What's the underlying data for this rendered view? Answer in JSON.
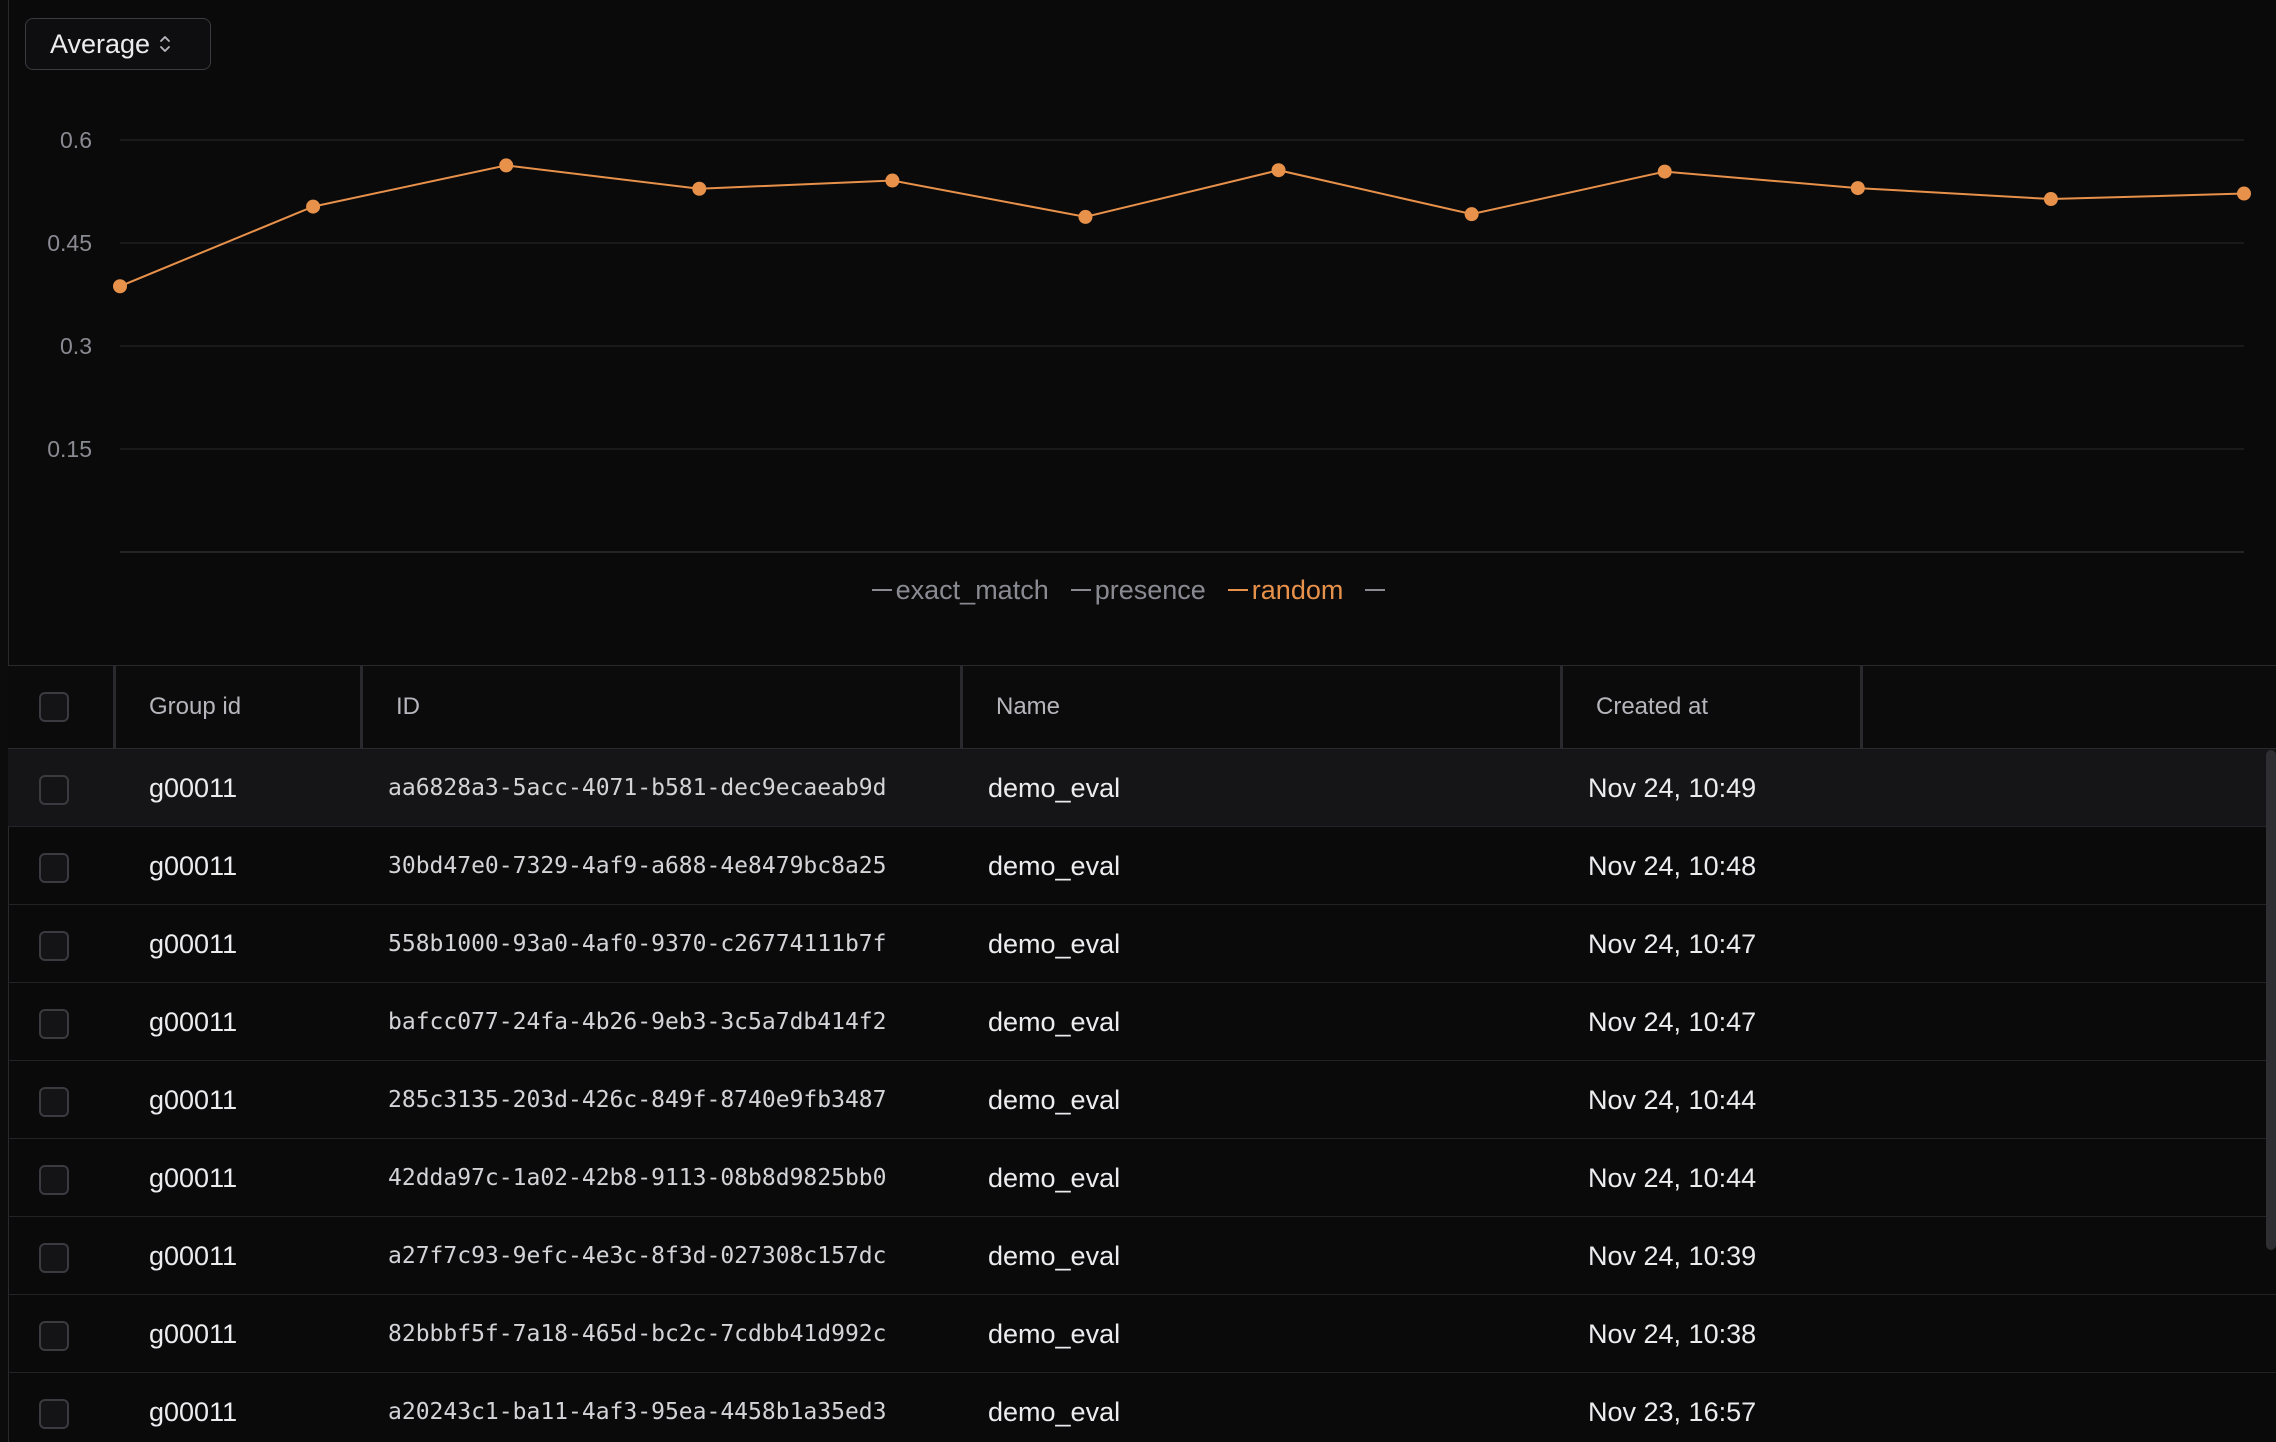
{
  "aggregate_select": {
    "value": "Average"
  },
  "chart_data": {
    "type": "line",
    "title": "",
    "xlabel": "",
    "ylabel": "",
    "ylim": [
      0,
      0.6
    ],
    "y_ticks": [
      "0.6",
      "0.45",
      "0.3",
      "0.15"
    ],
    "x": [
      1,
      2,
      3,
      4,
      5,
      6,
      7,
      8,
      9,
      10,
      11,
      12
    ],
    "grid": true,
    "legend_placement": "bottom-center",
    "series": [
      {
        "name": "random",
        "color": "#e8914a",
        "values": [
          0.387,
          0.503,
          0.563,
          0.529,
          0.541,
          0.488,
          0.556,
          0.492,
          0.554,
          0.53,
          0.514,
          0.522
        ]
      }
    ],
    "legend": [
      {
        "label": "exact_match",
        "active": false
      },
      {
        "label": "presence",
        "active": false
      },
      {
        "label": "random",
        "active": true
      },
      {
        "label": "",
        "active": false
      }
    ]
  },
  "table": {
    "columns": {
      "group_id": "Group id",
      "id": "ID",
      "name": "Name",
      "created_at": "Created at"
    },
    "rows": [
      {
        "group_id": "g00011",
        "id": "aa6828a3-5acc-4071-b581-dec9ecaeab9d",
        "name": "demo_eval",
        "created_at": "Nov 24, 10:49"
      },
      {
        "group_id": "g00011",
        "id": "30bd47e0-7329-4af9-a688-4e8479bc8a25",
        "name": "demo_eval",
        "created_at": "Nov 24, 10:48"
      },
      {
        "group_id": "g00011",
        "id": "558b1000-93a0-4af0-9370-c26774111b7f",
        "name": "demo_eval",
        "created_at": "Nov 24, 10:47"
      },
      {
        "group_id": "g00011",
        "id": "bafcc077-24fa-4b26-9eb3-3c5a7db414f2",
        "name": "demo_eval",
        "created_at": "Nov 24, 10:47"
      },
      {
        "group_id": "g00011",
        "id": "285c3135-203d-426c-849f-8740e9fb3487",
        "name": "demo_eval",
        "created_at": "Nov 24, 10:44"
      },
      {
        "group_id": "g00011",
        "id": "42dda97c-1a02-42b8-9113-08b8d9825bb0",
        "name": "demo_eval",
        "created_at": "Nov 24, 10:44"
      },
      {
        "group_id": "g00011",
        "id": "a27f7c93-9efc-4e3c-8f3d-027308c157dc",
        "name": "demo_eval",
        "created_at": "Nov 24, 10:39"
      },
      {
        "group_id": "g00011",
        "id": "82bbbf5f-7a18-465d-bc2c-7cdbb41d992c",
        "name": "demo_eval",
        "created_at": "Nov 24, 10:38"
      },
      {
        "group_id": "g00011",
        "id": "a20243c1-ba11-4af3-95ea-4458b1a35ed3",
        "name": "demo_eval",
        "created_at": "Nov 23, 16:57"
      }
    ]
  }
}
